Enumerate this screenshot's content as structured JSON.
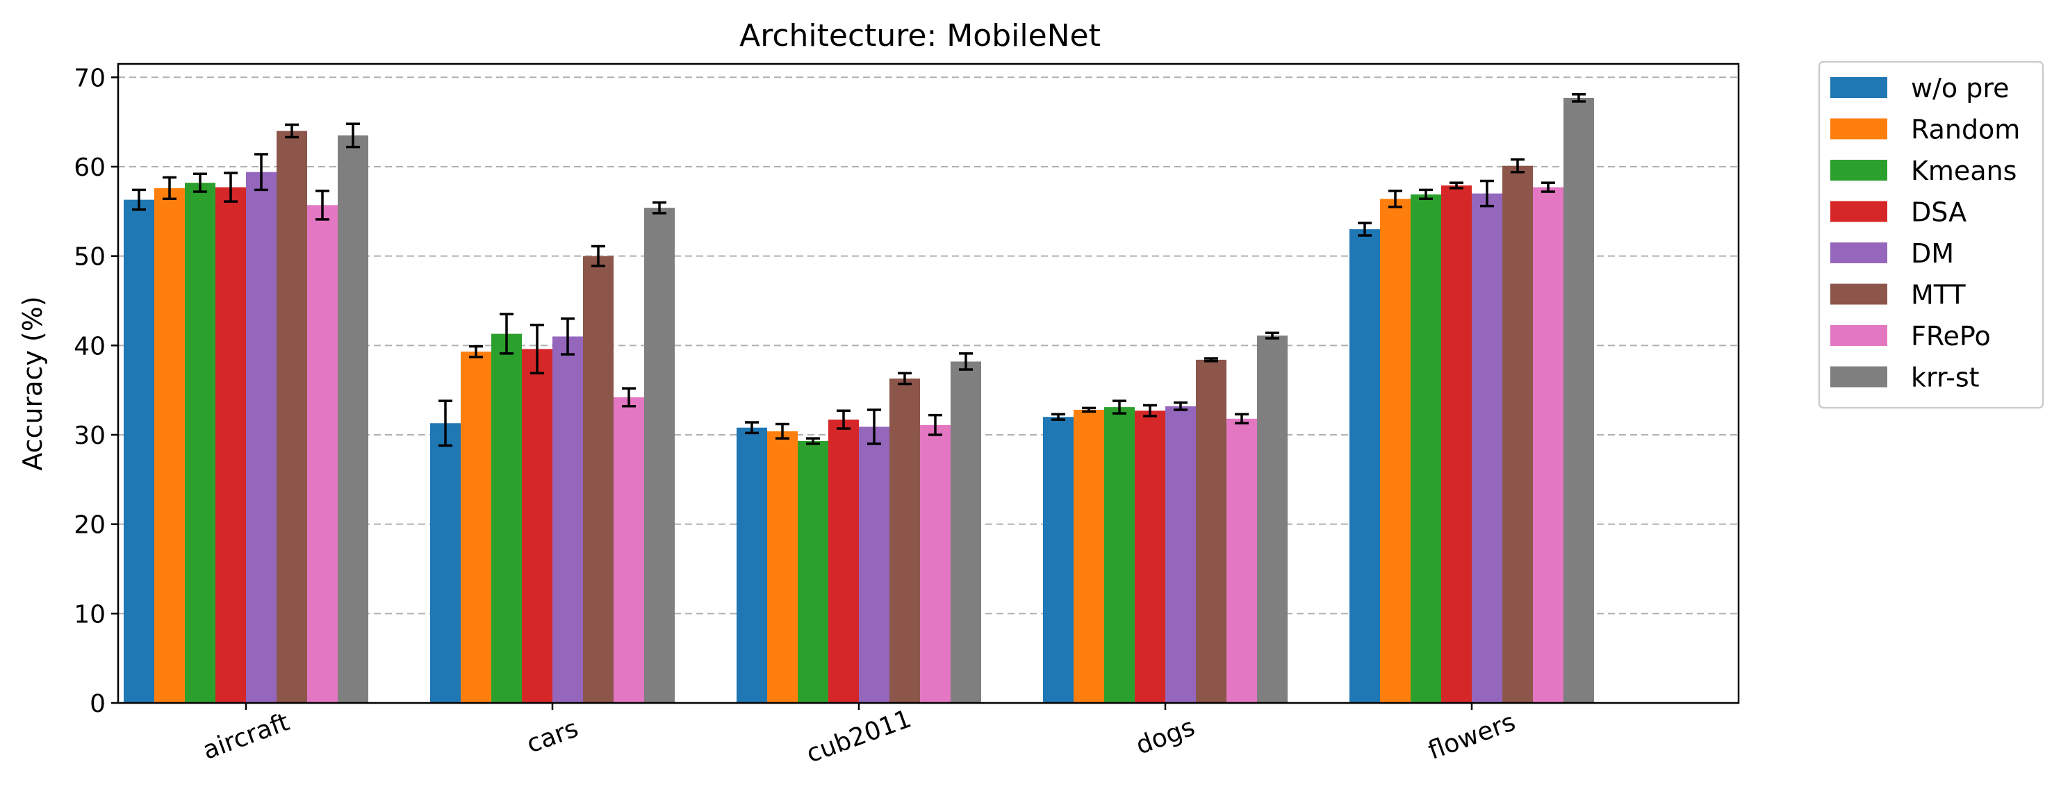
{
  "chart_data": {
    "type": "bar",
    "title": "Architecture: MobileNet",
    "xlabel": "",
    "ylabel": "Accuracy (%)",
    "ylim": [
      0,
      71.5
    ],
    "yticks": [
      0,
      10,
      20,
      30,
      40,
      50,
      60,
      70
    ],
    "grid": "y-dashed",
    "legend_position": "outside-right",
    "categories": [
      "aircraft",
      "cars",
      "cub2011",
      "dogs",
      "flowers"
    ],
    "series": [
      {
        "name": "w/o pre",
        "color": "#1f77b4",
        "values": [
          56.3,
          31.3,
          30.8,
          32.0,
          53.0
        ],
        "errors": [
          1.1,
          2.5,
          0.6,
          0.3,
          0.7
        ]
      },
      {
        "name": "Random",
        "color": "#ff7f0e",
        "values": [
          57.6,
          39.3,
          30.4,
          32.8,
          56.4
        ],
        "errors": [
          1.2,
          0.6,
          0.8,
          0.2,
          0.9
        ]
      },
      {
        "name": "Kmeans",
        "color": "#2ca02c",
        "values": [
          58.2,
          41.3,
          29.3,
          33.1,
          56.9
        ],
        "errors": [
          1.0,
          2.2,
          0.3,
          0.7,
          0.5
        ]
      },
      {
        "name": "DSA",
        "color": "#d62728",
        "values": [
          57.7,
          39.6,
          31.7,
          32.7,
          57.9
        ],
        "errors": [
          1.6,
          2.7,
          1.0,
          0.6,
          0.3
        ]
      },
      {
        "name": "DM",
        "color": "#9467bd",
        "values": [
          59.4,
          41.0,
          30.9,
          33.2,
          57.0
        ],
        "errors": [
          2.0,
          2.0,
          1.9,
          0.4,
          1.4
        ]
      },
      {
        "name": "MTT",
        "color": "#8c564b",
        "values": [
          64.0,
          50.0,
          36.3,
          38.4,
          60.1
        ],
        "errors": [
          0.7,
          1.1,
          0.6,
          0.15,
          0.7
        ]
      },
      {
        "name": "FRePo",
        "color": "#e377c2",
        "values": [
          55.7,
          34.2,
          31.1,
          31.8,
          57.7
        ],
        "errors": [
          1.6,
          1.0,
          1.1,
          0.5,
          0.5
        ]
      },
      {
        "name": "krr-st",
        "color": "#7f7f7f",
        "values": [
          63.5,
          55.4,
          38.2,
          41.1,
          67.7
        ],
        "errors": [
          1.3,
          0.6,
          0.9,
          0.3,
          0.4
        ]
      }
    ]
  }
}
